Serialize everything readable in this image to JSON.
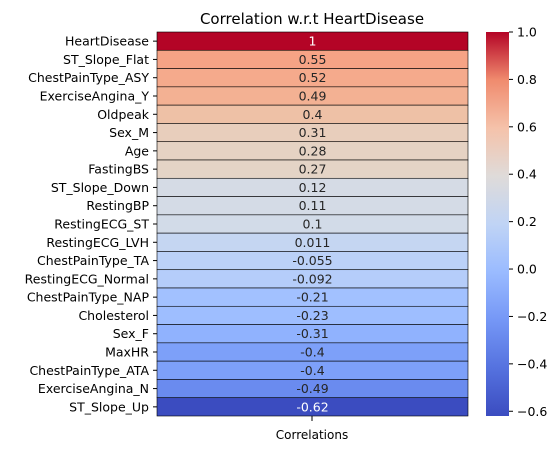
{
  "chart_data": {
    "type": "heatmap",
    "title": "Correlation w.r.t HeartDisease",
    "column_label": "Correlations",
    "rows": [
      {
        "label": "HeartDisease",
        "value": 1,
        "annot": "1",
        "color": "#b40426"
      },
      {
        "label": "ST_Slope_Flat",
        "value": 0.55,
        "annot": "0.55",
        "color": "#f6a385"
      },
      {
        "label": "ChestPainType_ASY",
        "value": 0.52,
        "annot": "0.52",
        "color": "#f5aa8c"
      },
      {
        "label": "ExerciseAngina_Y",
        "value": 0.49,
        "annot": "0.49",
        "color": "#f3b193"
      },
      {
        "label": "Oldpeak",
        "value": 0.4,
        "annot": "0.4",
        "color": "#eec1a6"
      },
      {
        "label": "Sex_M",
        "value": 0.31,
        "annot": "0.31",
        "color": "#e8cebc"
      },
      {
        "label": "Age",
        "value": 0.28,
        "annot": "0.28",
        "color": "#e5d2c3"
      },
      {
        "label": "FastingBS",
        "value": 0.27,
        "annot": "0.27",
        "color": "#e4d4c6"
      },
      {
        "label": "ST_Slope_Down",
        "value": 0.12,
        "annot": "0.12",
        "color": "#d5dbe5"
      },
      {
        "label": "RestingBP",
        "value": 0.11,
        "annot": "0.11",
        "color": "#d4dbe6"
      },
      {
        "label": "RestingECG_ST",
        "value": 0.1,
        "annot": "0.1",
        "color": "#d2dbe8"
      },
      {
        "label": "RestingECG_LVH",
        "value": 0.011,
        "annot": "0.011",
        "color": "#c5d6f2"
      },
      {
        "label": "ChestPainType_TA",
        "value": -0.055,
        "annot": "-0.055",
        "color": "#bbd1f8"
      },
      {
        "label": "RestingECG_Normal",
        "value": -0.092,
        "annot": "-0.092",
        "color": "#b5cdfa"
      },
      {
        "label": "ChestPainType_NAP",
        "value": -0.21,
        "annot": "-0.21",
        "color": "#a2c1ff"
      },
      {
        "label": "Cholesterol",
        "value": -0.23,
        "annot": "-0.23",
        "color": "#9ebeff"
      },
      {
        "label": "Sex_F",
        "value": -0.31,
        "annot": "-0.31",
        "color": "#90b2fe"
      },
      {
        "label": "MaxHR",
        "value": -0.4,
        "annot": "-0.4",
        "color": "#7da0f9"
      },
      {
        "label": "ChestPainType_ATA",
        "value": -0.4,
        "annot": "-0.4",
        "color": "#7da0f9"
      },
      {
        "label": "ExerciseAngina_N",
        "value": -0.49,
        "annot": "-0.49",
        "color": "#6a8bef"
      },
      {
        "label": "ST_Slope_Up",
        "value": -0.62,
        "annot": "-0.62",
        "color": "#3b4cc0"
      }
    ],
    "colorbar": {
      "colormap": "coolwarm",
      "range": [
        -0.62,
        1
      ],
      "ticks": [
        -0.6,
        -0.4,
        -0.2,
        0.0,
        0.2,
        0.4,
        0.6,
        0.8,
        1.0
      ],
      "tick_labels": [
        "−0.6",
        "−0.4",
        "−0.2",
        "0.0",
        "0.2",
        "0.4",
        "0.6",
        "0.8",
        "1.0"
      ]
    },
    "cell_border_color": "#000000"
  }
}
